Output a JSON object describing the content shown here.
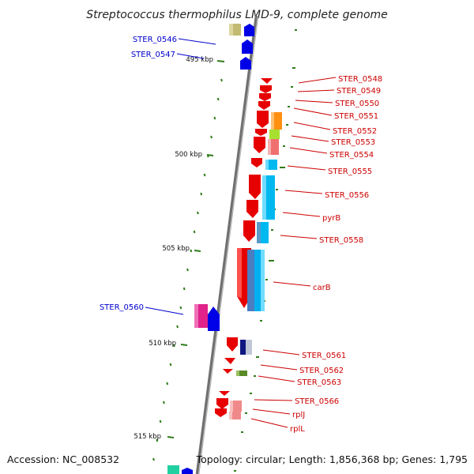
{
  "title": "Streptococcus thermophilus LMD-9, complete genome",
  "footer": {
    "accession": "Accession: NC_008532",
    "summary": "Topology: circular; Length: 1,856,368 bp; Genes: 1,795"
  },
  "ticks": [
    "495 kbp",
    "500 kbp",
    "505 kbp",
    "510 kbp",
    "515 kbp"
  ],
  "left_labels": [
    "STER_0546",
    "STER_0547",
    "STER_0560"
  ],
  "right_labels": [
    "STER_0548",
    "STER_0549",
    "STER_0550",
    "STER_0551",
    "STER_0552",
    "STER_0553",
    "STER_0554",
    "STER_0555",
    "STER_0556",
    "pyrB",
    "STER_0558",
    "carB",
    "STER_0561",
    "STER_0562",
    "STER_0563",
    "STER_0566",
    "rplJ",
    "rplL"
  ],
  "colors": {
    "forward_label": "#0000cc",
    "reverse_label": "#cc0000",
    "backbone": "#808080",
    "tick_mark": "#2e7d1a"
  }
}
